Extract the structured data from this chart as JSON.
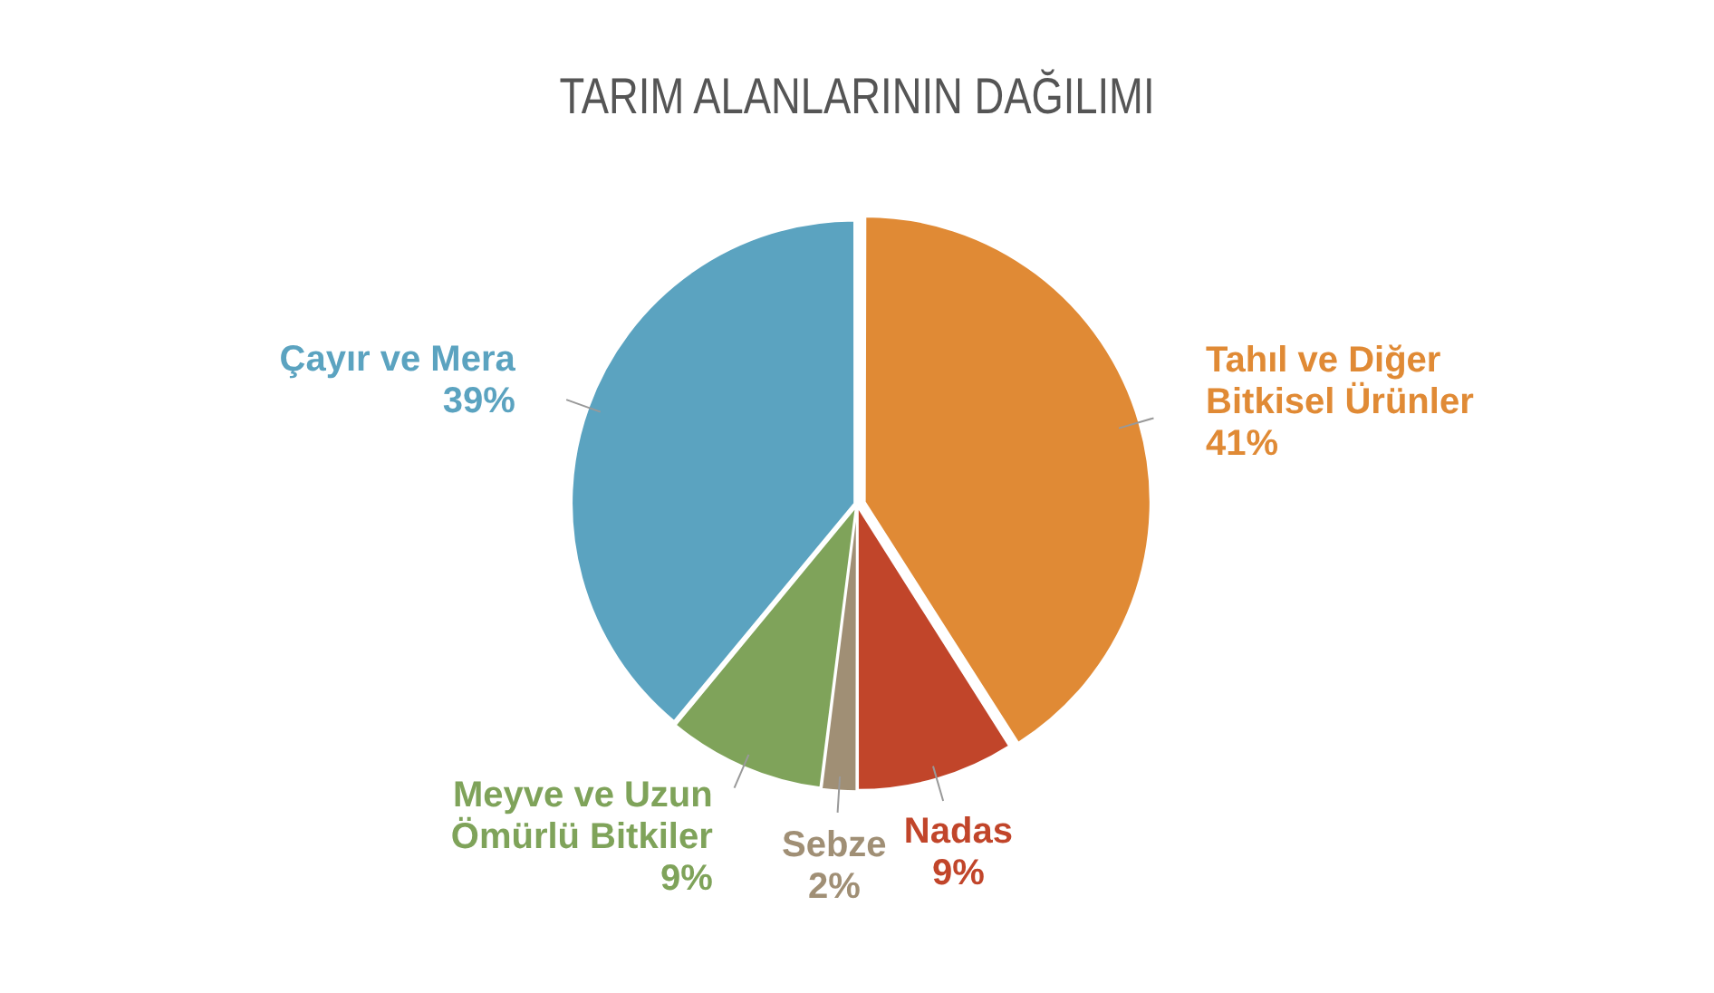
{
  "chart_data": {
    "type": "pie",
    "title": "TARIM ALANLARININ DAĞILIMI",
    "categories": [
      "Tahıl ve Diğer Bitkisel Ürünler",
      "Nadas",
      "Sebze",
      "Meyve ve Uzun Ömürlü Bitkiler",
      "Çayır ve Mera"
    ],
    "values": [
      41,
      9,
      2,
      9,
      39
    ],
    "colors": [
      "#e08a35",
      "#c1452a",
      "#a08f75",
      "#7fa35a",
      "#5ba3c0"
    ],
    "value_labels": [
      "41%",
      "9%",
      "2%",
      "9%",
      "39%"
    ],
    "legend": false
  }
}
